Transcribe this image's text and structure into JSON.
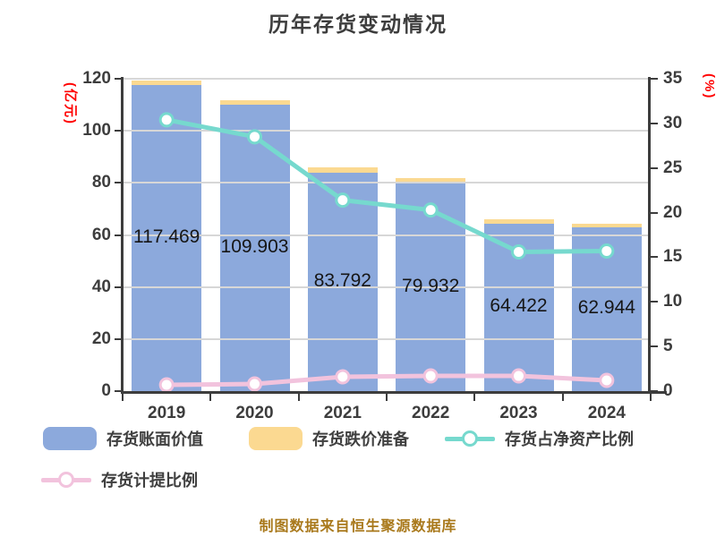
{
  "title": "历年存货变动情况",
  "caption": "制图数据来自恒生聚源数据库",
  "axes": {
    "left_label": "(亿元)",
    "right_label": "(%)"
  },
  "legend": {
    "items": [
      {
        "label": "存货账面价值",
        "type": "box",
        "color": "#8CA9DC"
      },
      {
        "label": "存货跌价准备",
        "type": "box",
        "color": "#FBD991"
      },
      {
        "label": "存货占净资产比例",
        "type": "line",
        "color": "#76D9CE"
      },
      {
        "label": "存货计提比例",
        "type": "line",
        "color": "#F2C3DD"
      }
    ]
  },
  "chart_data": {
    "type": "bar",
    "title": "历年存货变动情况",
    "categories": [
      "2019",
      "2020",
      "2021",
      "2022",
      "2023",
      "2024"
    ],
    "series": [
      {
        "name": "存货账面价值",
        "type": "bar",
        "axis": "left",
        "color": "#8CA9DC",
        "values": [
          117.469,
          109.903,
          83.792,
          79.932,
          64.422,
          62.944
        ]
      },
      {
        "name": "存货跌价准备",
        "type": "bar-stacked",
        "axis": "left",
        "color": "#FBD991",
        "values": [
          2.0,
          1.7,
          2.1,
          1.8,
          1.7,
          1.4
        ]
      },
      {
        "name": "存货占净资产比例",
        "type": "line",
        "axis": "right",
        "color": "#76D9CE",
        "values": [
          30.4,
          28.5,
          21.4,
          20.3,
          15.6,
          15.7
        ]
      },
      {
        "name": "存货计提比例",
        "type": "line",
        "axis": "right",
        "color": "#F2C3DD",
        "values": [
          0.7,
          0.8,
          1.6,
          1.7,
          1.7,
          1.2
        ]
      }
    ],
    "left_axis": {
      "label": "(亿元)",
      "min": 0,
      "max": 120,
      "ticks": [
        0,
        20,
        40,
        60,
        80,
        100,
        120
      ]
    },
    "right_axis": {
      "label": "(%)",
      "min": 0,
      "max": 35,
      "ticks": [
        0,
        5,
        10,
        15,
        20,
        25,
        30,
        35
      ]
    },
    "grid": true,
    "legend_position": "bottom",
    "bar_value_labels": [
      117.469,
      109.903,
      83.792,
      79.932,
      64.422,
      62.944
    ]
  }
}
